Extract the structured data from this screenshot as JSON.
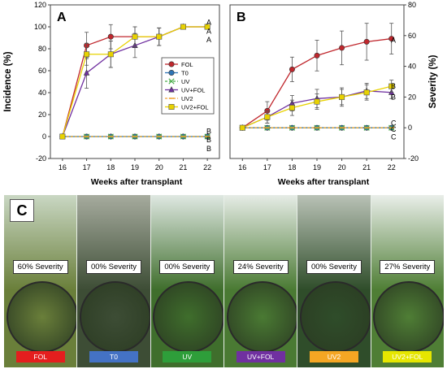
{
  "figure": {
    "panel_c_letter": "C"
  },
  "chart_data": [
    {
      "panel": "A",
      "type": "line",
      "xlabel": "Weeks after transplant",
      "ylabel": "Incidence (%)",
      "x": [
        16,
        17,
        18,
        19,
        20,
        21,
        22
      ],
      "xlim": [
        15.5,
        22.5
      ],
      "ylim": [
        -20,
        120
      ],
      "yticks": [
        -20,
        0,
        20,
        40,
        60,
        80,
        100,
        120
      ],
      "legend_position": "center-right",
      "series": [
        {
          "name": "FOL",
          "color": "#c0272d",
          "marker": "circle",
          "values": [
            0,
            83,
            91,
            91,
            91,
            100,
            100
          ],
          "errors": [
            0,
            12,
            11,
            9,
            8,
            0,
            0
          ]
        },
        {
          "name": "T0",
          "color": "#2e75b6",
          "marker": "circle",
          "values": [
            0,
            0,
            0,
            0,
            0,
            0,
            0
          ],
          "errors": [
            0,
            0,
            0,
            0,
            0,
            0,
            0
          ]
        },
        {
          "name": "UV",
          "color": "#4cae4c",
          "marker": "x",
          "values": [
            0,
            0,
            0,
            0,
            0,
            0,
            0
          ],
          "errors": [
            0,
            0,
            0,
            0,
            0,
            0,
            0
          ]
        },
        {
          "name": "UV+FOL",
          "color": "#7030a0",
          "marker": "triangle",
          "values": [
            0,
            58,
            75,
            83,
            91,
            100,
            100
          ],
          "errors": [
            0,
            14,
            12,
            11,
            8,
            0,
            0
          ]
        },
        {
          "name": "UV2",
          "color": "#f0a030",
          "marker": "dash",
          "values": [
            0,
            0,
            0,
            0,
            0,
            0,
            0
          ],
          "errors": [
            0,
            0,
            0,
            0,
            0,
            0,
            0
          ]
        },
        {
          "name": "UV2+FOL",
          "color": "#e8d200",
          "marker": "square",
          "values": [
            0,
            75,
            75,
            91,
            91,
            100,
            100
          ],
          "errors": [
            0,
            10,
            12,
            9,
            8,
            0,
            0
          ]
        }
      ],
      "annotations": [
        {
          "text": "A",
          "y": 104
        },
        {
          "text": "A",
          "y": 96
        },
        {
          "text": "A",
          "y": 88
        },
        {
          "text": "B",
          "y": 5
        },
        {
          "text": "B",
          "y": -3
        },
        {
          "text": "B",
          "y": -11
        }
      ]
    },
    {
      "panel": "B",
      "type": "line",
      "xlabel": "Weeks after transplant",
      "ylabel": "Severity (%)",
      "x": [
        16,
        17,
        18,
        19,
        20,
        21,
        22
      ],
      "xlim": [
        15.5,
        22.5
      ],
      "ylim": [
        -20,
        80
      ],
      "yticks": [
        -20,
        0,
        20,
        40,
        60,
        80
      ],
      "series": [
        {
          "name": "FOL",
          "color": "#c0272d",
          "marker": "circle",
          "values": [
            0,
            11,
            38,
            47,
            52,
            56,
            58
          ],
          "errors": [
            0,
            6,
            8,
            10,
            11,
            12,
            10
          ]
        },
        {
          "name": "T0",
          "color": "#2e75b6",
          "marker": "circle",
          "values": [
            0,
            0,
            0,
            0,
            0,
            0,
            0
          ],
          "errors": [
            0,
            0,
            0,
            0,
            0,
            0,
            0
          ]
        },
        {
          "name": "UV",
          "color": "#4cae4c",
          "marker": "x",
          "values": [
            0,
            0,
            0,
            0,
            0,
            0,
            0
          ],
          "errors": [
            0,
            0,
            0,
            0,
            0,
            0,
            0
          ]
        },
        {
          "name": "UV+FOL",
          "color": "#7030a0",
          "marker": "triangle",
          "values": [
            0,
            7,
            16,
            19,
            20,
            24,
            23
          ],
          "errors": [
            0,
            4,
            5,
            6,
            5,
            5,
            4
          ]
        },
        {
          "name": "UV2",
          "color": "#f0a030",
          "marker": "dash",
          "values": [
            0,
            0,
            0,
            0,
            0,
            0,
            0
          ],
          "errors": [
            0,
            0,
            0,
            0,
            0,
            0,
            0
          ]
        },
        {
          "name": "UV2+FOL",
          "color": "#e8d200",
          "marker": "square",
          "values": [
            0,
            7,
            13,
            17,
            20,
            23,
            27
          ],
          "errors": [
            0,
            4,
            5,
            5,
            6,
            5,
            4
          ]
        }
      ],
      "annotations": [
        {
          "text": "A",
          "y": 57
        },
        {
          "text": "B",
          "y": 27
        },
        {
          "text": "B",
          "y": 20
        },
        {
          "text": "C",
          "y": 3
        },
        {
          "text": "C",
          "y": -1
        },
        {
          "text": "C",
          "y": -6
        }
      ]
    }
  ],
  "photos": [
    {
      "severity_text": "60% Severity",
      "label": "FOL",
      "label_color": "#e41e1e",
      "sky": "#c9d7c3",
      "foliage": "#6a7f3a"
    },
    {
      "severity_text": "00% Severity",
      "label": "T0",
      "label_color": "#4472c4",
      "sky": "#a6ab9e",
      "foliage": "#3d4d35"
    },
    {
      "severity_text": "00% Severity",
      "label": "UV",
      "label_color": "#2e9e3a",
      "sky": "#dfe8e2",
      "foliage": "#3f6e2c"
    },
    {
      "severity_text": "24% Severity",
      "label": "UV+FOL",
      "label_color": "#7030a0",
      "sky": "#e6ece6",
      "foliage": "#4a7a33"
    },
    {
      "severity_text": "00% Severity",
      "label": "UV2",
      "label_color": "#f5a623",
      "sky": "#b9c2b6",
      "foliage": "#2f4d2a"
    },
    {
      "severity_text": "27% Severity",
      "label": "UV2+FOL",
      "label_color": "#e6e600",
      "sky": "#e9eee9",
      "foliage": "#4f7e35"
    }
  ]
}
